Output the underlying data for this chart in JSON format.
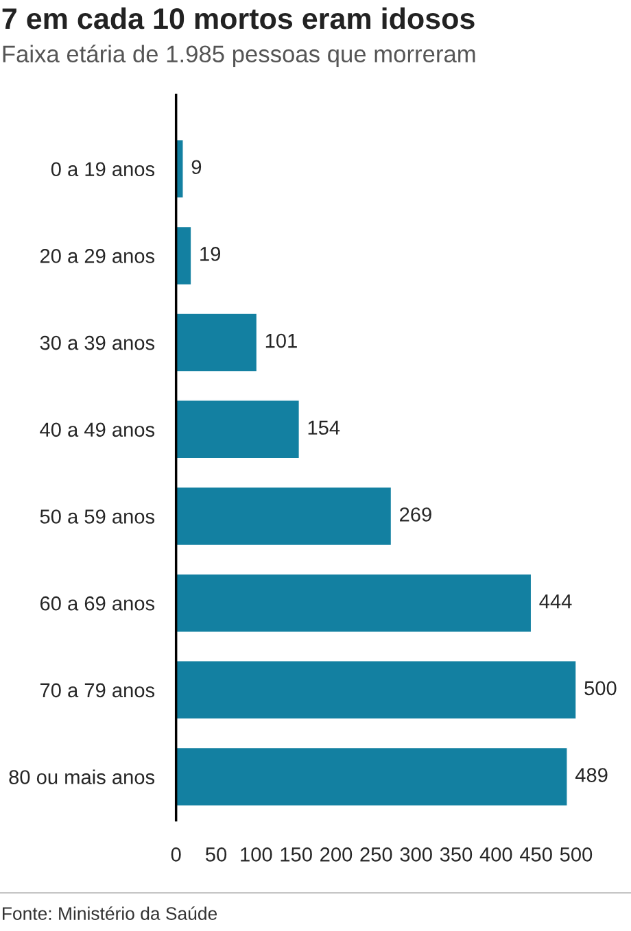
{
  "chart_data": {
    "type": "bar",
    "orientation": "horizontal",
    "title": "7 em cada 10 mortos eram idosos",
    "subtitle": "Faixa etária de 1.985 pessoas que morreram",
    "categories": [
      "0 a 19 anos",
      "20 a 29 anos",
      "30 a 39 anos",
      "40 a 49 anos",
      "50 a 59 anos",
      "60 a 69 anos",
      "70 a 79 anos",
      "80 ou mais anos"
    ],
    "values": [
      9,
      19,
      101,
      154,
      269,
      444,
      500,
      489
    ],
    "color": "#1380a1",
    "xlim": [
      0,
      500
    ],
    "xticks": [
      0,
      50,
      100,
      150,
      200,
      250,
      300,
      350,
      400,
      450,
      500
    ],
    "data_labels": true,
    "grid": false,
    "annotations": [
      "Fonte: Ministério da Saúde"
    ]
  }
}
